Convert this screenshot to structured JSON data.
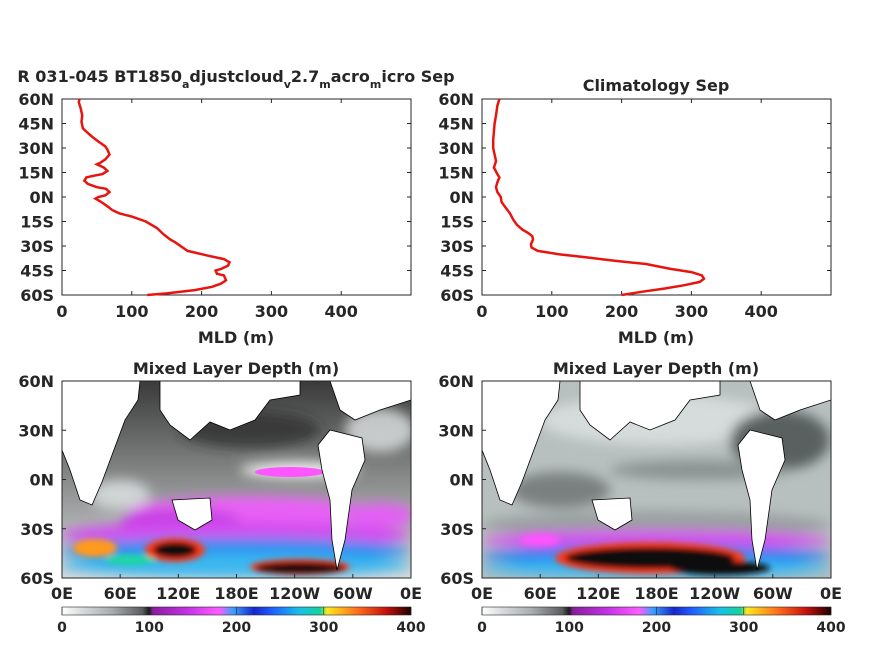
{
  "chart_data": [
    {
      "type": "line",
      "title": "R 031-045 BT1850_adjustcloud_v2.7_macro_micro Sep",
      "title_parts": {
        "p1": "R 031-045 BT1850",
        "s1": "a",
        "p2": "djustcloud",
        "s2": "v",
        "p3": "2.7",
        "s3": "m",
        "p4": "acro",
        "s4": "m",
        "p5": "icro Sep"
      },
      "xlabel": "MLD (m)",
      "ylabel": "",
      "xlim": [
        0,
        500
      ],
      "ylim": [
        -60,
        60
      ],
      "xticks": [
        0,
        100,
        200,
        300,
        400
      ],
      "yticks": [
        "60N",
        "45N",
        "30N",
        "15N",
        "0N",
        "15S",
        "30S",
        "45S",
        "60S"
      ],
      "grid": false,
      "series": [
        {
          "color": "#e8140f",
          "points": [
            [
              25,
              60
            ],
            [
              24,
              58
            ],
            [
              27,
              54
            ],
            [
              29,
              50
            ],
            [
              28,
              46
            ],
            [
              30,
              42
            ],
            [
              35,
              40
            ],
            [
              43,
              37
            ],
            [
              52,
              34
            ],
            [
              62,
              31
            ],
            [
              65,
              29
            ],
            [
              68,
              26
            ],
            [
              62,
              23
            ],
            [
              55,
              21
            ],
            [
              50,
              20
            ],
            [
              60,
              18
            ],
            [
              65,
              16
            ],
            [
              58,
              14
            ],
            [
              45,
              13
            ],
            [
              35,
              12
            ],
            [
              32,
              10
            ],
            [
              37,
              8
            ],
            [
              50,
              6
            ],
            [
              63,
              5
            ],
            [
              68,
              3
            ],
            [
              62,
              1
            ],
            [
              52,
              0
            ],
            [
              48,
              -1
            ],
            [
              56,
              -3
            ],
            [
              66,
              -6
            ],
            [
              72,
              -8
            ],
            [
              82,
              -10
            ],
            [
              100,
              -12
            ],
            [
              120,
              -15
            ],
            [
              136,
              -19
            ],
            [
              146,
              -23
            ],
            [
              155,
              -26
            ],
            [
              163,
              -28
            ],
            [
              173,
              -31
            ],
            [
              180,
              -33
            ],
            [
              210,
              -36
            ],
            [
              232,
              -38
            ],
            [
              240,
              -40
            ],
            [
              238,
              -42
            ],
            [
              228,
              -44
            ],
            [
              220,
              -45
            ],
            [
              222,
              -47
            ],
            [
              232,
              -48
            ],
            [
              235,
              -51
            ],
            [
              228,
              -53
            ],
            [
              215,
              -55
            ],
            [
              190,
              -57
            ],
            [
              150,
              -59
            ],
            [
              122,
              -60
            ]
          ]
        }
      ]
    },
    {
      "type": "line",
      "title": "Climatology Sep",
      "xlabel": "MLD (m)",
      "ylabel": "",
      "xlim": [
        0,
        500
      ],
      "ylim": [
        -60,
        60
      ],
      "xticks": [
        0,
        100,
        200,
        300,
        400
      ],
      "yticks": [
        "60N",
        "45N",
        "30N",
        "15N",
        "0N",
        "15S",
        "30S",
        "45S",
        "60S"
      ],
      "grid": false,
      "series": [
        {
          "color": "#e8140f",
          "points": [
            [
              25,
              60
            ],
            [
              22,
              56
            ],
            [
              20,
              50
            ],
            [
              18,
              45
            ],
            [
              17,
              40
            ],
            [
              16,
              35
            ],
            [
              16,
              30
            ],
            [
              18,
              26
            ],
            [
              20,
              22
            ],
            [
              17,
              18
            ],
            [
              22,
              14
            ],
            [
              25,
              12
            ],
            [
              22,
              9
            ],
            [
              20,
              6
            ],
            [
              22,
              3
            ],
            [
              27,
              0
            ],
            [
              28,
              -3
            ],
            [
              33,
              -6
            ],
            [
              40,
              -10
            ],
            [
              45,
              -14
            ],
            [
              50,
              -17
            ],
            [
              58,
              -20
            ],
            [
              66,
              -22
            ],
            [
              72,
              -24
            ],
            [
              73,
              -26
            ],
            [
              70,
              -29
            ],
            [
              71,
              -31
            ],
            [
              80,
              -33
            ],
            [
              110,
              -35
            ],
            [
              150,
              -37
            ],
            [
              190,
              -39
            ],
            [
              235,
              -41
            ],
            [
              270,
              -44
            ],
            [
              300,
              -46
            ],
            [
              315,
              -48
            ],
            [
              318,
              -50
            ],
            [
              312,
              -52
            ],
            [
              290,
              -54
            ],
            [
              262,
              -56
            ],
            [
              230,
              -58
            ],
            [
              200,
              -60
            ]
          ]
        }
      ]
    },
    {
      "type": "heatmap",
      "title": "Mixed Layer Depth (m)",
      "xticks": [
        "0E",
        "60E",
        "120E",
        "180E",
        "120W",
        "60W",
        "0E"
      ],
      "yticks": [
        "60N",
        "30N",
        "0N",
        "30S",
        "60S"
      ],
      "colorbar": {
        "ticks": [
          0,
          100,
          200,
          300,
          400
        ],
        "range": [
          0,
          400
        ]
      }
    },
    {
      "type": "heatmap",
      "title": "Mixed Layer Depth (m)",
      "xticks": [
        "0E",
        "60E",
        "120E",
        "180E",
        "120W",
        "60W",
        "0E"
      ],
      "yticks": [
        "60N",
        "30N",
        "0N",
        "30S",
        "60S"
      ],
      "colorbar": {
        "ticks": [
          0,
          100,
          200,
          300,
          400
        ],
        "range": [
          0,
          400
        ]
      }
    }
  ]
}
